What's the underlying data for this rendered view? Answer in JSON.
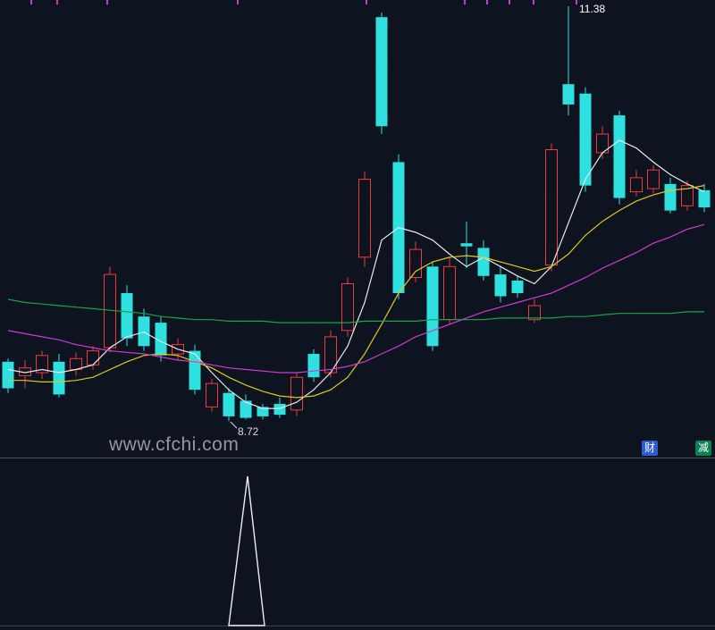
{
  "page": {
    "watermark": "www.cfchi.com"
  },
  "side_tags": [
    {
      "label": "财"
    },
    {
      "label": "减"
    }
  ],
  "chart_data": {
    "type": "candlestick",
    "title": "",
    "xlabel": "",
    "ylabel": "",
    "legend": "none",
    "colors": {
      "background": "#0d1420",
      "up": "#ee3b3b",
      "down": "#2ee0e0",
      "grid_h": "#1c2940",
      "grid_v": "#16233a",
      "divider": "#4a5366",
      "tick": "#d238d2",
      "baseline": "#9aa0a8",
      "signal": "#ededed"
    },
    "panels": [
      {
        "name": "price",
        "ylim": [
          8.6,
          11.42
        ],
        "grid": true,
        "high_label": "11.38",
        "low_label": "8.72",
        "high_index": 33,
        "low_index": 13,
        "top_ticks_x": [
          35,
          64,
          120,
          266,
          410,
          520,
          545,
          570,
          597,
          645
        ],
        "candles": [
          [
            9.1,
            9.12,
            8.9,
            8.93
          ],
          [
            9.01,
            9.11,
            8.93,
            9.06
          ],
          [
            9.03,
            9.17,
            8.99,
            9.14
          ],
          [
            9.1,
            9.15,
            8.87,
            8.89
          ],
          [
            9.05,
            9.16,
            9.01,
            9.12
          ],
          [
            9.08,
            9.2,
            9.05,
            9.17
          ],
          [
            9.19,
            9.71,
            9.16,
            9.66
          ],
          [
            9.54,
            9.59,
            9.2,
            9.25
          ],
          [
            9.39,
            9.44,
            9.17,
            9.2
          ],
          [
            9.35,
            9.39,
            9.1,
            9.14
          ],
          [
            9.15,
            9.25,
            9.11,
            9.21
          ],
          [
            9.17,
            9.21,
            8.89,
            8.92
          ],
          [
            8.81,
            8.99,
            8.78,
            8.96
          ],
          [
            8.9,
            8.93,
            8.72,
            8.75
          ],
          [
            8.85,
            8.89,
            8.73,
            8.74
          ],
          [
            8.81,
            8.83,
            8.73,
            8.75
          ],
          [
            8.83,
            8.87,
            8.74,
            8.76
          ],
          [
            8.79,
            9.03,
            8.75,
            9.0
          ],
          [
            9.15,
            9.18,
            8.97,
            9.0
          ],
          [
            9.03,
            9.3,
            9.0,
            9.26
          ],
          [
            9.3,
            9.64,
            9.26,
            9.6
          ],
          [
            9.77,
            10.32,
            9.71,
            10.27
          ],
          [
            11.31,
            11.34,
            10.56,
            10.61
          ],
          [
            10.38,
            10.43,
            9.5,
            9.54
          ],
          [
            9.64,
            9.87,
            9.61,
            9.82
          ],
          [
            9.71,
            9.74,
            9.17,
            9.2
          ],
          [
            9.37,
            9.77,
            9.34,
            9.71
          ],
          [
            9.86,
            10.0,
            9.7,
            9.84
          ],
          [
            9.83,
            9.88,
            9.62,
            9.65
          ],
          [
            9.66,
            9.71,
            9.48,
            9.52
          ],
          [
            9.62,
            9.65,
            9.51,
            9.54
          ],
          [
            9.37,
            9.5,
            9.35,
            9.46
          ],
          [
            9.72,
            10.5,
            9.68,
            10.46
          ],
          [
            10.88,
            11.38,
            10.68,
            10.75
          ],
          [
            10.82,
            10.86,
            10.19,
            10.23
          ],
          [
            10.44,
            10.61,
            10.4,
            10.56
          ],
          [
            10.68,
            10.71,
            10.11,
            10.15
          ],
          [
            10.19,
            10.33,
            10.16,
            10.28
          ],
          [
            10.21,
            10.36,
            10.18,
            10.33
          ],
          [
            10.24,
            10.28,
            10.05,
            10.07
          ],
          [
            10.1,
            10.26,
            10.07,
            10.23
          ],
          [
            10.2,
            10.24,
            10.06,
            10.09
          ]
        ],
        "ma_series": [
          {
            "name": "ma-fast-white",
            "color": "#e8e8e8",
            "values": [
              9.05,
              9.03,
              9.05,
              9.03,
              9.05,
              9.08,
              9.19,
              9.26,
              9.29,
              9.23,
              9.18,
              9.15,
              9.03,
              8.92,
              8.84,
              8.8,
              8.8,
              8.84,
              8.92,
              9.03,
              9.2,
              9.48,
              9.88,
              9.96,
              9.93,
              9.88,
              9.79,
              9.71,
              9.77,
              9.71,
              9.65,
              9.6,
              9.71,
              9.99,
              10.27,
              10.44,
              10.52,
              10.47,
              10.38,
              10.3,
              10.24,
              10.19
            ]
          },
          {
            "name": "ma-mid-yellow",
            "color": "#ddc81e",
            "values": [
              8.98,
              8.98,
              8.97,
              8.97,
              8.98,
              9.0,
              9.05,
              9.1,
              9.14,
              9.15,
              9.14,
              9.1,
              9.06,
              9.0,
              8.95,
              8.91,
              8.88,
              8.87,
              8.88,
              8.92,
              9.0,
              9.15,
              9.34,
              9.54,
              9.68,
              9.74,
              9.77,
              9.78,
              9.77,
              9.74,
              9.71,
              9.68,
              9.71,
              9.79,
              9.91,
              10.0,
              10.07,
              10.13,
              10.17,
              10.2,
              10.21,
              10.23
            ]
          },
          {
            "name": "ma-slow-magenta",
            "color": "#d238d2",
            "values": [
              9.3,
              9.28,
              9.26,
              9.24,
              9.21,
              9.19,
              9.17,
              9.16,
              9.15,
              9.13,
              9.11,
              9.1,
              9.08,
              9.06,
              9.05,
              9.04,
              9.03,
              9.03,
              9.04,
              9.05,
              9.07,
              9.1,
              9.15,
              9.2,
              9.26,
              9.3,
              9.34,
              9.38,
              9.42,
              9.45,
              9.48,
              9.51,
              9.54,
              9.59,
              9.64,
              9.7,
              9.75,
              9.8,
              9.86,
              9.9,
              9.95,
              9.98
            ]
          },
          {
            "name": "ma-long-green",
            "color": "#1ba447",
            "values": [
              9.5,
              9.48,
              9.47,
              9.46,
              9.45,
              9.44,
              9.43,
              9.42,
              9.41,
              9.39,
              9.38,
              9.37,
              9.37,
              9.36,
              9.36,
              9.36,
              9.35,
              9.35,
              9.35,
              9.35,
              9.35,
              9.36,
              9.36,
              9.36,
              9.36,
              9.37,
              9.37,
              9.37,
              9.37,
              9.38,
              9.38,
              9.38,
              9.38,
              9.39,
              9.39,
              9.4,
              9.41,
              9.41,
              9.41,
              9.41,
              9.42,
              9.42
            ]
          }
        ]
      },
      {
        "name": "indicator",
        "type": "spike",
        "ylim": [
          0,
          1
        ],
        "signal_index": 14,
        "signal_value": 1
      }
    ]
  }
}
